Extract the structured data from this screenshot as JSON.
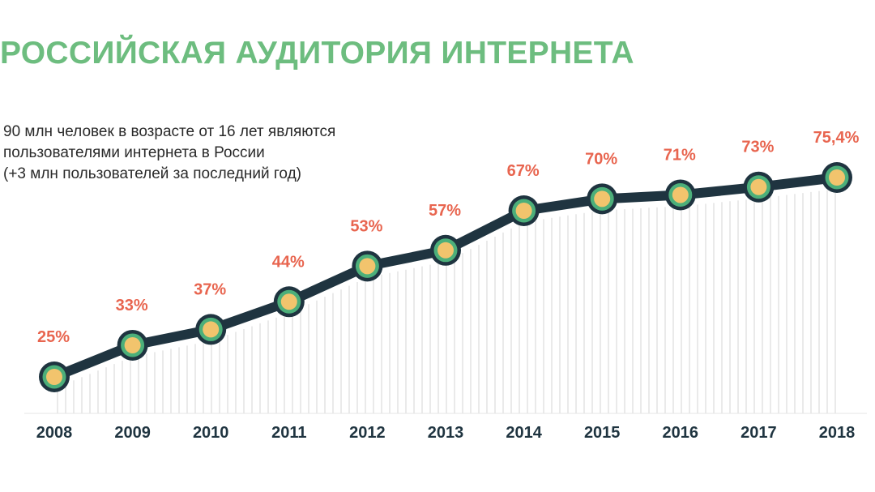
{
  "header": {
    "title": "РОССИЙСКАЯ АУДИТОРИЯ ИНТЕРНЕТА",
    "subtitle_lines": [
      "90 млн человек в возрасте от 16 лет являются",
      "пользователями интернета в России",
      "(+3 млн пользователей за последний год)"
    ]
  },
  "colors": {
    "title": "#6dbd7f",
    "line": "#1f3440",
    "marker_ring": "#4caf7a",
    "marker_fill": "#f2c46d",
    "value_label": "#e8654f",
    "year_label": "#1f3440",
    "hatch": "#d6d6d6"
  },
  "chart_data": {
    "type": "line",
    "categories": [
      "2008",
      "2009",
      "2010",
      "2011",
      "2012",
      "2013",
      "2014",
      "2015",
      "2016",
      "2017",
      "2018"
    ],
    "values": [
      25,
      33,
      37,
      44,
      53,
      57,
      67,
      70,
      71,
      73,
      75.4
    ],
    "value_labels": [
      "25%",
      "33%",
      "37%",
      "44%",
      "53%",
      "57%",
      "67%",
      "70%",
      "71%",
      "73%",
      "75,4%"
    ],
    "title": "РОССИЙСКАЯ АУДИТОРИЯ ИНТЕРНЕТА",
    "xlabel": "",
    "ylabel": "",
    "grid": false,
    "legend": "none"
  }
}
